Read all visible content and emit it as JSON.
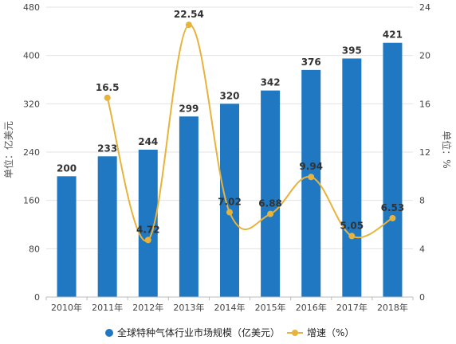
{
  "chart_data": {
    "type": "bar",
    "categories": [
      "2010年",
      "2011年",
      "2012年",
      "2013年",
      "2014年",
      "2015年",
      "2016年",
      "2017年",
      "2018年"
    ],
    "series": [
      {
        "name": "全球特种气体行业市场规模（亿美元）",
        "type": "bar",
        "axis": "left",
        "values": [
          200,
          233,
          244,
          299,
          320,
          342,
          376,
          395,
          421
        ]
      },
      {
        "name": "增速（%）",
        "type": "line",
        "axis": "right",
        "values": [
          null,
          16.5,
          4.72,
          22.54,
          7.02,
          6.88,
          9.94,
          5.05,
          6.53
        ]
      }
    ],
    "ylabel": "单位：亿美元",
    "y2label": "单位：%",
    "ylim": [
      0,
      480
    ],
    "y2lim": [
      0,
      24
    ],
    "yticks": [
      0,
      80,
      160,
      240,
      320,
      400,
      480
    ],
    "y2ticks": [
      0,
      4,
      8,
      12,
      16,
      20,
      24
    ],
    "grid": true,
    "legend": "bottom",
    "colors": {
      "bar": "#1f78c1",
      "line": "#e8b33c"
    }
  }
}
